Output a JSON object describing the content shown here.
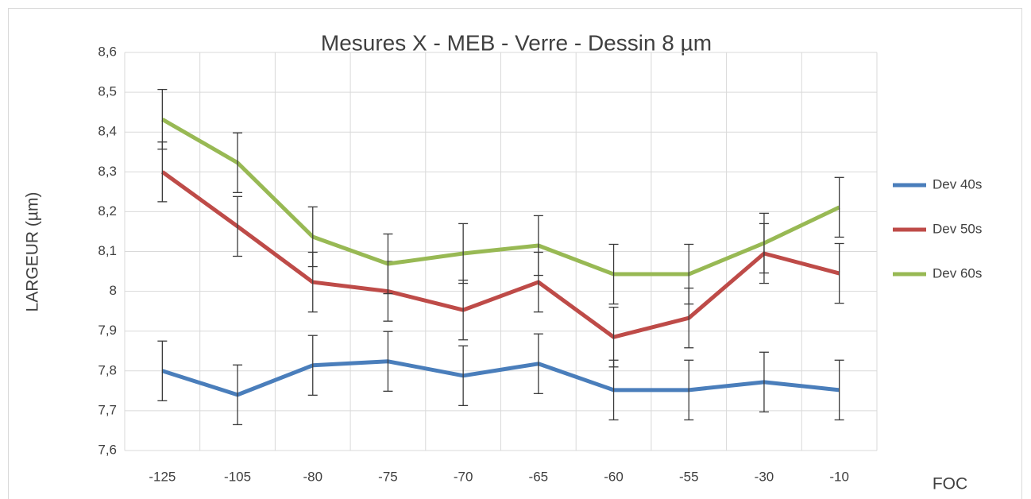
{
  "chart_data": {
    "type": "line",
    "title": "Mesures X - MEB - Verre - Dessin 8 µm",
    "y_label": "LARGEUR (µm)",
    "x_label": "FOC",
    "categories": [
      "-125",
      "-105",
      "-80",
      "-75",
      "-70",
      "-65",
      "-60",
      "-55",
      "-30",
      "-10"
    ],
    "series": [
      {
        "name": "Dev 40s",
        "color": "#4a7ebb",
        "values": [
          7.8,
          7.74,
          7.814,
          7.824,
          7.788,
          7.818,
          7.752,
          7.752,
          7.772,
          7.752
        ],
        "errors": [
          0.075,
          0.075,
          0.075,
          0.075,
          0.075,
          0.075,
          0.075,
          0.075,
          0.075,
          0.075
        ]
      },
      {
        "name": "Dev 50s",
        "color": "#be4b48",
        "values": [
          8.3,
          8.163,
          8.023,
          8.0,
          7.953,
          8.023,
          7.885,
          7.933,
          8.095,
          8.045
        ],
        "errors": [
          0.075,
          0.075,
          0.075,
          0.075,
          0.075,
          0.075,
          0.075,
          0.075,
          0.075,
          0.075
        ]
      },
      {
        "name": "Dev 60s",
        "color": "#98b954",
        "values": [
          8.432,
          8.323,
          8.137,
          8.069,
          8.095,
          8.115,
          8.043,
          8.043,
          8.121,
          8.211
        ],
        "errors": [
          0.075,
          0.075,
          0.075,
          0.075,
          0.075,
          0.075,
          0.075,
          0.075,
          0.075,
          0.075
        ]
      }
    ],
    "ylim": [
      7.6,
      8.6
    ],
    "yticks": [
      {
        "value": 7.6,
        "label": "7,6"
      },
      {
        "value": 7.7,
        "label": "7,7"
      },
      {
        "value": 7.8,
        "label": "7,8"
      },
      {
        "value": 7.9,
        "label": "7,9"
      },
      8,
      {
        "value": 8.1,
        "label": "8,1"
      },
      {
        "value": 8.2,
        "label": "8,2"
      },
      {
        "value": 8.3,
        "label": "8,3"
      },
      {
        "value": 8.4,
        "label": "8,4"
      },
      {
        "value": 8.5,
        "label": "8,5"
      },
      {
        "value": 8.6,
        "label": "8,6"
      }
    ],
    "grid": true,
    "legend": "right"
  }
}
